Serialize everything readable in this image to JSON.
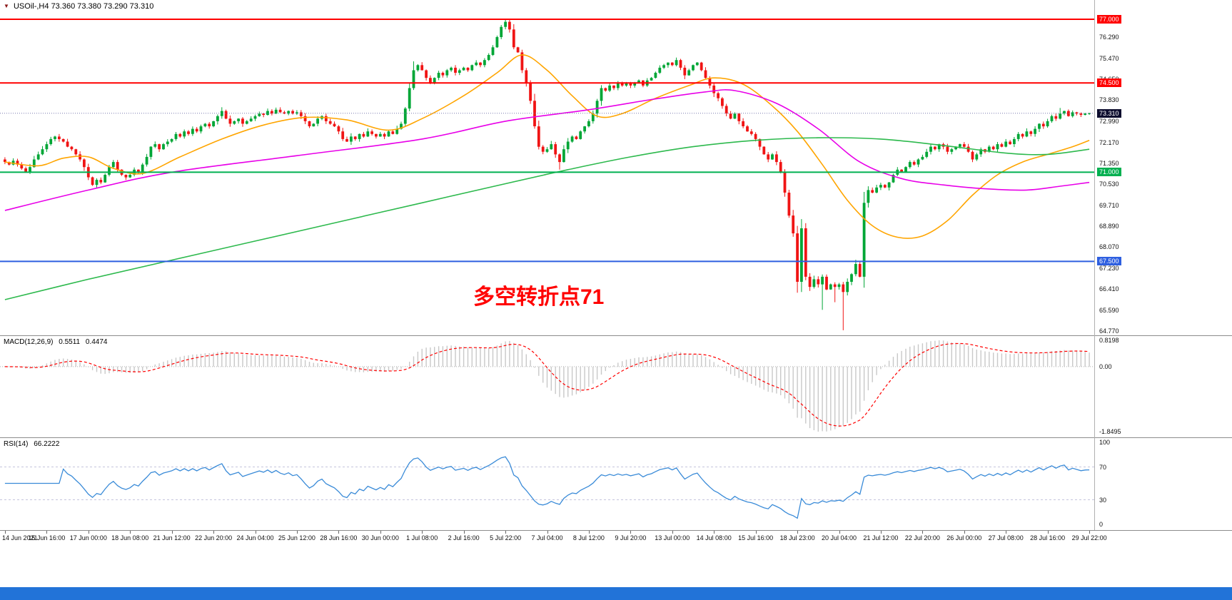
{
  "window": {
    "symbol_bar": {
      "symbol": "USOil-,H4",
      "ohlc": "73.360 73.380 73.290 73.310",
      "marker_icon": "triangle-down"
    }
  },
  "chart_data": {
    "type": "candlestick",
    "title": "USOil-,H4",
    "symbol": "USOil-",
    "timeframe": "H4",
    "ohlc_readout": {
      "open": "73.360",
      "high": "73.380",
      "low": "73.290",
      "close": "73.310"
    },
    "visible_price_range": {
      "min": 64.6,
      "max": 77.35
    },
    "price_axis": {
      "tick_labels": [
        {
          "label": "76.290",
          "value": 76.29
        },
        {
          "label": "75.470",
          "value": 75.47
        },
        {
          "label": "74.650",
          "value": 74.65
        },
        {
          "label": "73.830",
          "value": 73.83
        },
        {
          "label": "72.990",
          "value": 72.99
        },
        {
          "label": "72.170",
          "value": 72.17
        },
        {
          "label": "71.350",
          "value": 71.35
        },
        {
          "label": "70.530",
          "value": 70.53
        },
        {
          "label": "69.710",
          "value": 69.71
        },
        {
          "label": "68.890",
          "value": 68.89
        },
        {
          "label": "68.070",
          "value": 68.07
        },
        {
          "label": "67.230",
          "value": 67.23
        },
        {
          "label": "66.410",
          "value": 66.41
        },
        {
          "label": "65.590",
          "value": 65.59
        },
        {
          "label": "64.770",
          "value": 64.77
        }
      ]
    },
    "levels": [
      {
        "label": "77.000",
        "value": 77.0,
        "color": "#FF0000"
      },
      {
        "label": "74.500",
        "value": 74.5,
        "color": "#FF0000"
      },
      {
        "label": "71.000",
        "value": 71.0,
        "color": "#00B050"
      },
      {
        "label": "67.500",
        "value": 67.5,
        "color": "#2E5FE0"
      }
    ],
    "current_price": {
      "label": "73.310",
      "value": 73.31
    },
    "annotation": {
      "text": "多空转折点71",
      "color": "#FF0000"
    },
    "candles": {
      "first_open": 71.5,
      "closes": [
        71.4,
        71.3,
        71.45,
        71.3,
        71.15,
        71.0,
        71.2,
        71.5,
        71.7,
        71.9,
        72.1,
        72.3,
        72.4,
        72.3,
        72.2,
        72.0,
        71.9,
        71.7,
        71.5,
        71.2,
        70.8,
        70.5,
        70.7,
        70.6,
        70.9,
        71.2,
        71.4,
        71.1,
        70.9,
        70.8,
        70.9,
        71.1,
        71.0,
        71.3,
        71.6,
        72.0,
        72.1,
        71.9,
        72.1,
        72.2,
        72.3,
        72.5,
        72.4,
        72.6,
        72.5,
        72.7,
        72.6,
        72.8,
        72.9,
        72.8,
        73.0,
        73.2,
        73.4,
        73.1,
        72.9,
        73.0,
        73.1,
        72.9,
        73.0,
        73.1,
        73.2,
        73.3,
        73.25,
        73.4,
        73.3,
        73.45,
        73.35,
        73.3,
        73.4,
        73.3,
        73.35,
        73.2,
        73.0,
        72.8,
        72.9,
        73.1,
        73.2,
        73.0,
        72.9,
        72.8,
        72.6,
        72.3,
        72.2,
        72.4,
        72.3,
        72.5,
        72.4,
        72.6,
        72.5,
        72.4,
        72.5,
        72.4,
        72.6,
        72.5,
        72.7,
        72.9,
        73.5,
        74.3,
        75.0,
        75.2,
        75.0,
        74.7,
        74.5,
        74.7,
        74.9,
        74.8,
        75.0,
        75.1,
        74.9,
        75.0,
        75.1,
        75.0,
        75.2,
        75.3,
        75.2,
        75.4,
        75.6,
        75.9,
        76.3,
        76.7,
        76.9,
        76.6,
        75.9,
        75.7,
        75.0,
        74.5,
        73.8,
        72.8,
        72.0,
        71.8,
        71.9,
        72.1,
        71.7,
        71.4,
        71.9,
        72.2,
        72.4,
        72.3,
        72.6,
        72.8,
        73.0,
        73.3,
        73.8,
        74.3,
        74.2,
        74.4,
        74.3,
        74.5,
        74.4,
        74.5,
        74.4,
        74.5,
        74.6,
        74.4,
        74.6,
        74.7,
        74.9,
        75.1,
        75.2,
        75.3,
        75.2,
        75.4,
        75.1,
        74.8,
        75.0,
        75.2,
        75.3,
        75.0,
        74.7,
        74.4,
        74.1,
        73.9,
        73.6,
        73.3,
        73.1,
        73.3,
        73.0,
        72.8,
        72.6,
        72.5,
        72.3,
        72.0,
        71.7,
        71.5,
        71.7,
        71.4,
        71.0,
        70.2,
        69.3,
        68.6,
        66.7,
        68.8,
        66.9,
        66.5,
        66.8,
        66.6,
        66.9,
        66.4,
        66.6,
        66.5,
        66.6,
        66.3,
        66.7,
        67.0,
        67.4,
        66.9,
        69.8,
        70.3,
        70.2,
        70.4,
        70.5,
        70.4,
        70.6,
        70.9,
        71.1,
        71.0,
        71.2,
        71.4,
        71.3,
        71.5,
        71.6,
        71.8,
        72.0,
        71.9,
        72.1,
        72.0,
        71.8,
        71.9,
        72.0,
        72.1,
        72.0,
        71.8,
        71.5,
        71.7,
        71.9,
        71.8,
        72.0,
        71.9,
        72.1,
        72.0,
        72.2,
        72.1,
        72.3,
        72.5,
        72.4,
        72.6,
        72.5,
        72.7,
        72.9,
        72.8,
        73.0,
        73.2,
        73.1,
        73.3,
        73.4,
        73.2,
        73.35,
        73.3,
        73.25,
        73.3,
        73.31
      ],
      "wick_overrides": {
        "52": {
          "high": 73.55
        },
        "98": {
          "high": 75.35
        },
        "120": {
          "high": 77.0
        },
        "121": {
          "high": 76.98
        },
        "133": {
          "low": 71.1
        },
        "191": {
          "low": 66.3
        },
        "192": {
          "high": 69.0
        },
        "196": {
          "low": 65.6
        },
        "199": {
          "low": 65.9
        },
        "201": {
          "low": 64.8
        },
        "253": {
          "high": 73.52
        }
      }
    },
    "moving_averages": [
      {
        "name": "ma-fast-line",
        "color": "#FFA500",
        "points": [
          [
            0,
            71.4
          ],
          [
            8,
            71.25
          ],
          [
            14,
            71.55
          ],
          [
            20,
            71.6
          ],
          [
            26,
            71.15
          ],
          [
            33,
            70.95
          ],
          [
            42,
            71.6
          ],
          [
            52,
            72.3
          ],
          [
            62,
            72.85
          ],
          [
            72,
            73.15
          ],
          [
            82,
            73.05
          ],
          [
            92,
            72.65
          ],
          [
            100,
            73.1
          ],
          [
            110,
            74.0
          ],
          [
            118,
            74.9
          ],
          [
            124,
            75.6
          ],
          [
            130,
            75.0
          ],
          [
            136,
            74.0
          ],
          [
            142,
            73.2
          ],
          [
            148,
            73.3
          ],
          [
            156,
            73.9
          ],
          [
            164,
            74.4
          ],
          [
            170,
            74.7
          ],
          [
            177,
            74.45
          ],
          [
            184,
            73.6
          ],
          [
            190,
            72.6
          ],
          [
            196,
            71.3
          ],
          [
            202,
            69.9
          ],
          [
            208,
            68.9
          ],
          [
            214,
            68.45
          ],
          [
            220,
            68.5
          ],
          [
            226,
            69.1
          ],
          [
            232,
            70.1
          ],
          [
            238,
            70.9
          ],
          [
            244,
            71.4
          ],
          [
            250,
            71.7
          ],
          [
            256,
            72.0
          ],
          [
            260,
            72.25
          ]
        ]
      },
      {
        "name": "ma-mid-line",
        "color": "#E800E8",
        "points": [
          [
            0,
            69.5
          ],
          [
            20,
            70.3
          ],
          [
            40,
            71.0
          ],
          [
            70,
            71.65
          ],
          [
            100,
            72.3
          ],
          [
            120,
            73.0
          ],
          [
            140,
            73.45
          ],
          [
            155,
            73.85
          ],
          [
            168,
            74.15
          ],
          [
            175,
            74.2
          ],
          [
            185,
            73.7
          ],
          [
            195,
            72.7
          ],
          [
            205,
            71.4
          ],
          [
            215,
            70.75
          ],
          [
            225,
            70.5
          ],
          [
            235,
            70.35
          ],
          [
            245,
            70.3
          ],
          [
            253,
            70.45
          ],
          [
            260,
            70.6
          ]
        ]
      },
      {
        "name": "ma-slow-line",
        "color": "#2DB94D",
        "points": [
          [
            0,
            66.0
          ],
          [
            20,
            66.8
          ],
          [
            40,
            67.55
          ],
          [
            60,
            68.3
          ],
          [
            80,
            69.05
          ],
          [
            100,
            69.8
          ],
          [
            120,
            70.55
          ],
          [
            135,
            71.1
          ],
          [
            150,
            71.6
          ],
          [
            165,
            72.0
          ],
          [
            180,
            72.25
          ],
          [
            195,
            72.35
          ],
          [
            210,
            72.3
          ],
          [
            225,
            72.05
          ],
          [
            240,
            71.75
          ],
          [
            250,
            71.7
          ],
          [
            260,
            71.9
          ]
        ]
      }
    ],
    "macd": {
      "label": "MACD(12,26,9)",
      "hist_value": "0.5511",
      "signal_value": "0.4474",
      "axis_labels": [
        "0.8198",
        "0.00",
        "-1.8495"
      ],
      "fast": 12,
      "slow": 26,
      "signal": 9,
      "hist_color": "#C8C8C8",
      "signal_color": "#FF0000"
    },
    "rsi": {
      "label": "RSI(14)",
      "value": "66.2222",
      "axis_labels": [
        "100",
        "70",
        "30",
        "0"
      ],
      "period": 14,
      "levels": [
        70,
        30
      ],
      "line_color": "#3A8BD8"
    },
    "time_axis": {
      "labels": [
        "14 Jun 2021",
        "15 Jun 16:00",
        "17 Jun 00:00",
        "18 Jun 08:00",
        "21 Jun 12:00",
        "22 Jun 20:00",
        "24 Jun 04:00",
        "25 Jun 12:00",
        "28 Jun 16:00",
        "30 Jun 00:00",
        "1 Jul 08:00",
        "2 Jul 16:00",
        "5 Jul 22:00",
        "7 Jul 04:00",
        "8 Jul 12:00",
        "9 Jul 20:00",
        "13 Jul 00:00",
        "14 Jul 08:00",
        "15 Jul 16:00",
        "18 Jul 23:00",
        "20 Jul 04:00",
        "21 Jul 12:00",
        "22 Jul 20:00",
        "26 Jul 00:00",
        "27 Jul 08:00",
        "28 Jul 16:00",
        "29 Jul 22:00"
      ]
    },
    "colors": {
      "bull": "#00A636",
      "bear": "#F01414",
      "background": "#FFFFFF",
      "current_price_badge": "#0D0D2E",
      "footer": "#2273D8"
    }
  }
}
